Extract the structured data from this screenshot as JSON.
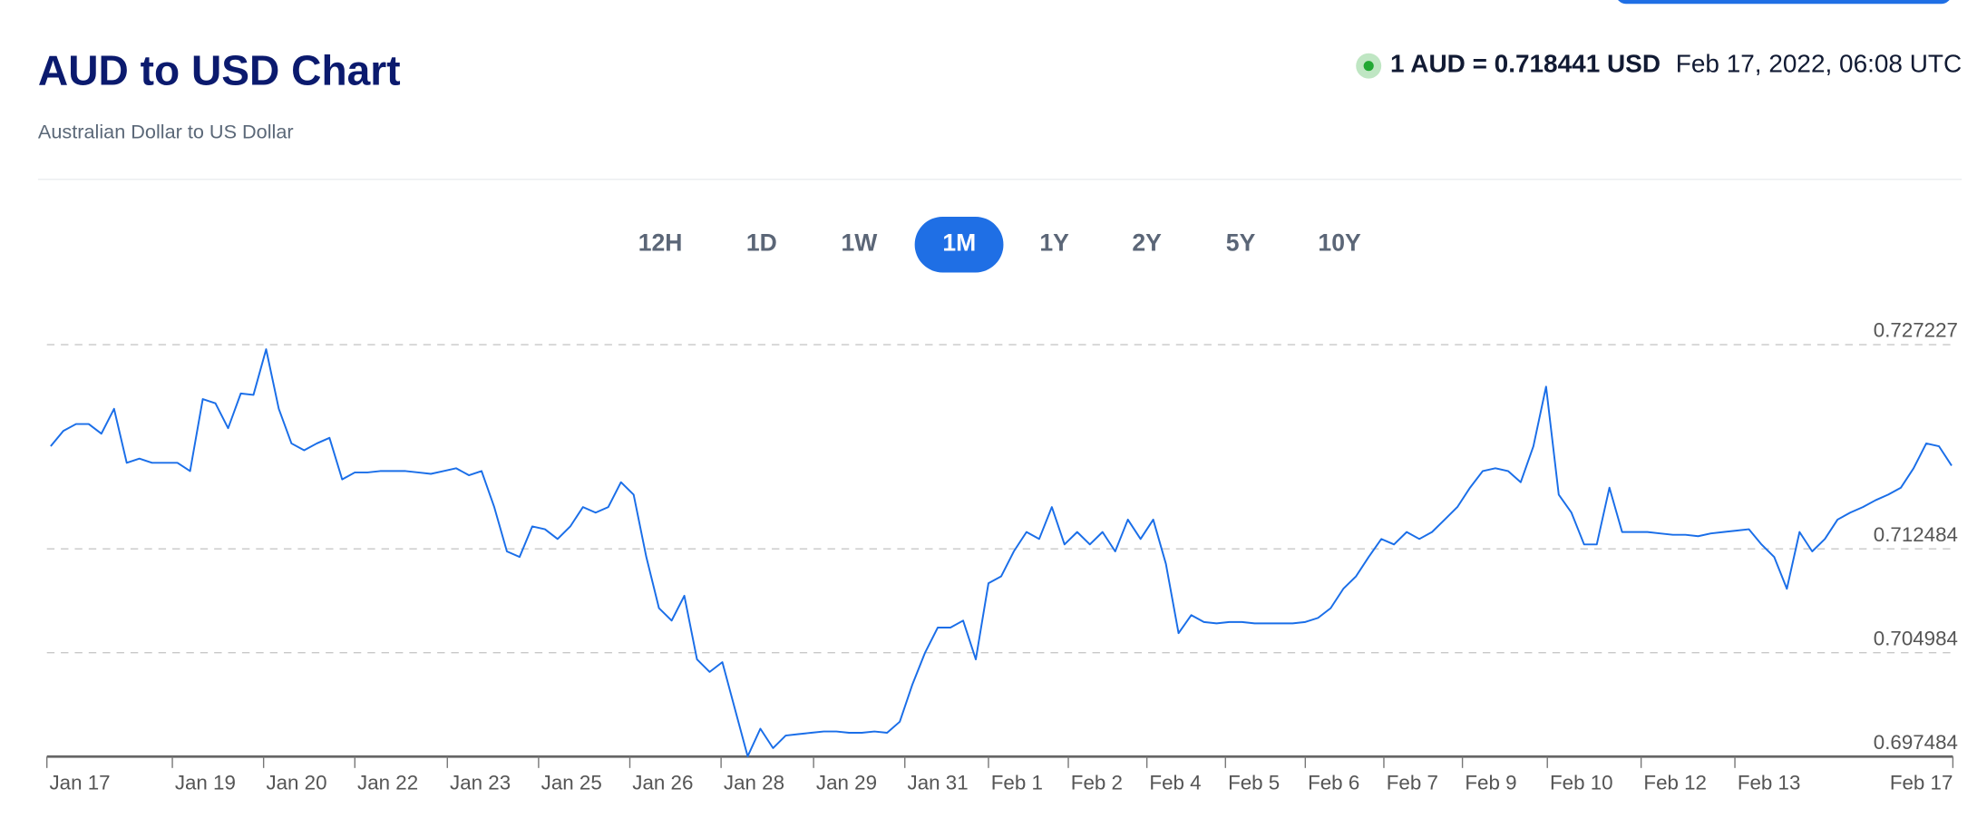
{
  "header": {
    "title": "AUD to USD Chart",
    "subtitle": "Australian Dollar to US Dollar",
    "rate": "1 AUD = 0.718441 USD",
    "timestamp": "Feb 17, 2022, 06:08 UTC",
    "live_indicator_color": "#22a834"
  },
  "tabs": [
    {
      "label": "12H",
      "active": false
    },
    {
      "label": "1D",
      "active": false
    },
    {
      "label": "1W",
      "active": false
    },
    {
      "label": "1M",
      "active": true
    },
    {
      "label": "1Y",
      "active": false
    },
    {
      "label": "2Y",
      "active": false
    },
    {
      "label": "5Y",
      "active": false
    },
    {
      "label": "10Y",
      "active": false
    }
  ],
  "colors": {
    "accent": "#1f6fe5",
    "line": "#1a6ee8",
    "title": "#0b1a6e"
  },
  "chart_data": {
    "type": "line",
    "title": "",
    "xlabel": "",
    "ylabel": "",
    "ylim": [
      0.697484,
      0.727227
    ],
    "y_ticks": [
      "0.727227",
      "0.712484",
      "0.704984",
      "0.697484"
    ],
    "y_tick_values": [
      0.727227,
      0.712484,
      0.704984,
      0.697484
    ],
    "x_ticks": [
      "Jan 17",
      "Jan 19",
      "Jan 20",
      "Jan 22",
      "Jan 23",
      "Jan 25",
      "Jan 26",
      "Jan 28",
      "Jan 29",
      "Jan 31",
      "Feb 1",
      "Feb 2",
      "Feb 4",
      "Feb 5",
      "Feb 6",
      "Feb 7",
      "Feb 9",
      "Feb 10",
      "Feb 12",
      "Feb 13",
      "Feb 17"
    ],
    "grid": "horizontal dashed",
    "series": [
      {
        "values": [
          0.7199,
          0.721,
          0.7215,
          0.7215,
          0.7208,
          0.7226,
          0.7187,
          0.719,
          0.7187,
          0.7187,
          0.7187,
          0.7181,
          0.7233,
          0.723,
          0.7212,
          0.7237,
          0.7236,
          0.7269,
          0.7226,
          0.7201,
          0.7196,
          0.7201,
          0.7205,
          0.7175,
          0.718,
          0.718,
          0.7181,
          0.7181,
          0.7181,
          0.718,
          0.7179,
          0.7181,
          0.7183,
          0.7178,
          0.7181,
          0.7155,
          0.7123,
          0.7119,
          0.7141,
          0.7139,
          0.7132,
          0.7141,
          0.7155,
          0.7151,
          0.7155,
          0.7173,
          0.7164,
          0.7119,
          0.7082,
          0.7073,
          0.7091,
          0.7045,
          0.7036,
          0.7043,
          0.7009,
          0.6975,
          0.6995,
          0.6981,
          0.699,
          0.6991,
          0.6992,
          0.6993,
          0.6993,
          0.6992,
          0.6992,
          0.6993,
          0.6992,
          0.7,
          0.7027,
          0.705,
          0.7068,
          0.7068,
          0.7073,
          0.7045,
          0.71,
          0.7105,
          0.7123,
          0.7137,
          0.7132,
          0.7155,
          0.7128,
          0.7137,
          0.7128,
          0.7137,
          0.7123,
          0.7146,
          0.7132,
          0.7146,
          0.7114,
          0.7064,
          0.7077,
          0.7072,
          0.7071,
          0.7072,
          0.7072,
          0.7071,
          0.7071,
          0.7071,
          0.7071,
          0.7072,
          0.7075,
          0.7082,
          0.7096,
          0.7105,
          0.7119,
          0.7132,
          0.7128,
          0.7137,
          0.7132,
          0.7137,
          0.7146,
          0.7155,
          0.7169,
          0.7181,
          0.7183,
          0.7181,
          0.7173,
          0.7199,
          0.7242,
          0.7164,
          0.7151,
          0.7128,
          0.7128,
          0.7169,
          0.7137,
          0.7137,
          0.7137,
          0.7136,
          0.7135,
          0.7135,
          0.7134,
          0.7136,
          0.7137,
          0.7138,
          0.7139,
          0.7128,
          0.7119,
          0.7096,
          0.7137,
          0.7123,
          0.7132,
          0.7146,
          0.7151,
          0.7155,
          0.716,
          0.7164,
          0.7169,
          0.7183,
          0.7201,
          0.7199,
          0.7185
        ]
      }
    ]
  }
}
